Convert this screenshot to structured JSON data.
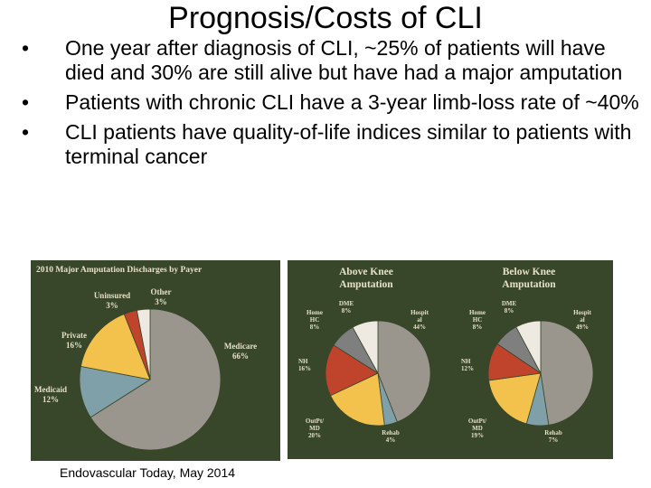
{
  "title": "Prognosis/Costs of CLI",
  "bullets": [
    "One year after diagnosis of CLI, ~25% of patients will have died and 30% are still alive but have had a major amputation",
    "Patients with chronic CLI have a 3-year limb-loss rate of ~40%",
    "CLI patients have quality-of-life indices similar to patients with terminal cancer"
  ],
  "bullet_glyph": "•",
  "caption": "Endovascular Today, May 2014",
  "chart_data": [
    {
      "type": "pie",
      "title": "2010 Major Amputation Discharges by Payer",
      "slices": [
        {
          "name": "Medicare",
          "value": 66,
          "color": "#9a968d",
          "label": "Medicare",
          "pct": "66%"
        },
        {
          "name": "Medicaid",
          "value": 12,
          "color": "#7fa0a8",
          "label": "Medicaid",
          "pct": "12%"
        },
        {
          "name": "Private",
          "value": 16,
          "color": "#f3c24c",
          "label": "Private",
          "pct": "16%"
        },
        {
          "name": "Uninsured",
          "value": 3,
          "color": "#c0432c",
          "label": "Uninsured",
          "pct": "3%"
        },
        {
          "name": "Other",
          "value": 3,
          "color": "#eeeae2",
          "label": "Other",
          "pct": "3%"
        }
      ]
    },
    {
      "type": "pie",
      "title": [
        "Above Knee",
        "Amputation"
      ],
      "slices": [
        {
          "name": "Hospital",
          "value": 44,
          "color": "#9a968d",
          "label": [
            "Hospit",
            "al"
          ],
          "pct": "44%"
        },
        {
          "name": "Rehab",
          "value": 4,
          "color": "#7fa0a8",
          "label": [
            "Rehab"
          ],
          "pct": "4%"
        },
        {
          "name": "OutPt/MD",
          "value": 20,
          "color": "#f3c24c",
          "label": [
            "OutPt/",
            "MD"
          ],
          "pct": "20%"
        },
        {
          "name": "NH",
          "value": 16,
          "color": "#c0432c",
          "label": [
            "NH"
          ],
          "pct": "16%"
        },
        {
          "name": "Home HC",
          "value": 8,
          "color": "#7f7f7f",
          "label": [
            "Home",
            "HC"
          ],
          "pct": "8%"
        },
        {
          "name": "DME",
          "value": 8,
          "color": "#eeeae2",
          "label": [
            "DME"
          ],
          "pct": "8%"
        }
      ]
    },
    {
      "type": "pie",
      "title": [
        "Below Knee",
        "Amputation"
      ],
      "slices": [
        {
          "name": "Hospital",
          "value": 49,
          "color": "#9a968d",
          "label": [
            "Hospit",
            "al"
          ],
          "pct": "49%"
        },
        {
          "name": "Rehab",
          "value": 7,
          "color": "#7fa0a8",
          "label": [
            "Rehab"
          ],
          "pct": "7%"
        },
        {
          "name": "OutPt/MD",
          "value": 19,
          "color": "#f3c24c",
          "label": [
            "OutPt/",
            "MD"
          ],
          "pct": "19%"
        },
        {
          "name": "NH",
          "value": 12,
          "color": "#c0432c",
          "label": [
            "NH"
          ],
          "pct": "12%"
        },
        {
          "name": "Home HC",
          "value": 8,
          "color": "#7f7f7f",
          "label": [
            "Home",
            "HC"
          ],
          "pct": "8%"
        },
        {
          "name": "DME",
          "value": 8,
          "color": "#eeeae2",
          "label": [
            "DME"
          ],
          "pct": "8%"
        }
      ]
    }
  ]
}
